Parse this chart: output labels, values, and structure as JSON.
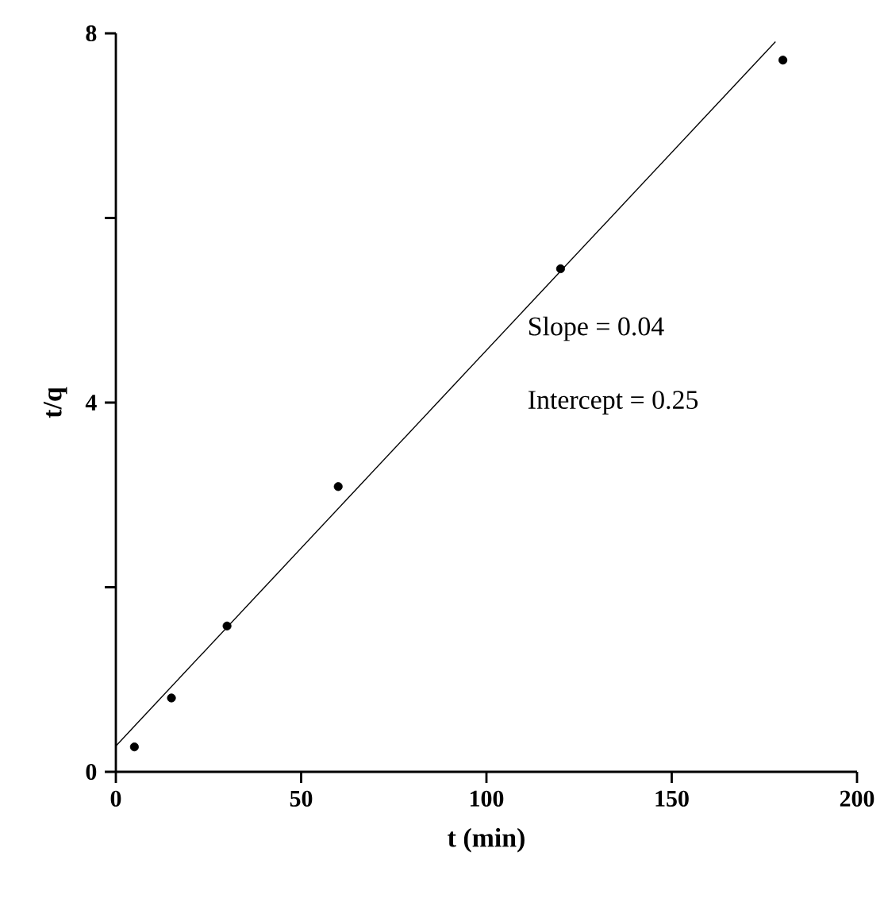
{
  "chart_data": {
    "type": "scatter",
    "xlabel": "t (min)",
    "ylabel": "t/q",
    "x": [
      5,
      15,
      30,
      60,
      120,
      180
    ],
    "series": [
      {
        "color": "#000000",
        "marker": "circle",
        "values": [
          0.27,
          0.8,
          1.58,
          3.09,
          5.45,
          7.71
        ]
      },
      {
        "type": "line",
        "color": "#000000",
        "marker": "none",
        "line_style": "solid",
        "x": [
          0,
          178
        ],
        "values": [
          0.28,
          7.91
        ]
      }
    ],
    "xlim": [
      0,
      200
    ],
    "xticks": [
      0,
      50,
      100,
      150,
      200
    ],
    "ylim": [
      0,
      8
    ],
    "yticks": [
      0,
      {
        "value": 2,
        "label": null
      },
      4,
      {
        "value": 6,
        "label": null
      },
      8
    ],
    "annotations": [
      "Slope = 0.04",
      "Intercept = 0.25"
    ]
  }
}
